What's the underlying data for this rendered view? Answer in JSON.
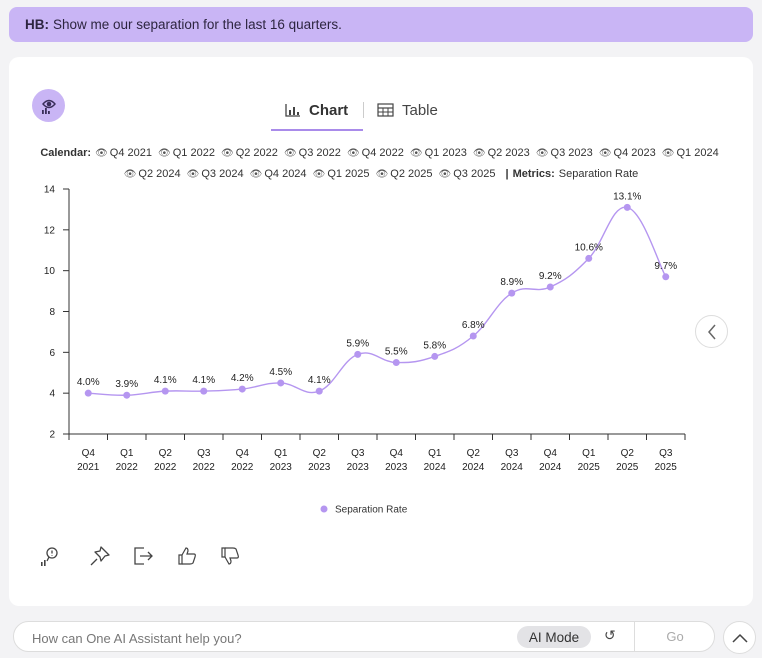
{
  "prompt": {
    "user": "HB:",
    "text": "Show me our separation for the last 16 quarters."
  },
  "tabs": {
    "chart": "Chart",
    "table": "Table"
  },
  "filters": {
    "calendar_label": "Calendar:",
    "quarters": [
      "Q4 2021",
      "Q1 2022",
      "Q2 2022",
      "Q3 2022",
      "Q4 2022",
      "Q1 2023",
      "Q2 2023",
      "Q3 2023",
      "Q4 2023",
      "Q1 2024",
      "Q2 2024",
      "Q3 2024",
      "Q4 2024",
      "Q1 2025",
      "Q2 2025",
      "Q3 2025"
    ],
    "metrics_label": "Metrics:",
    "metric": "Separation Rate"
  },
  "chart_data": {
    "type": "line",
    "categories": [
      [
        "Q4",
        "2021"
      ],
      [
        "Q1",
        "2022"
      ],
      [
        "Q2",
        "2022"
      ],
      [
        "Q3",
        "2022"
      ],
      [
        "Q4",
        "2022"
      ],
      [
        "Q1",
        "2023"
      ],
      [
        "Q2",
        "2023"
      ],
      [
        "Q3",
        "2023"
      ],
      [
        "Q4",
        "2023"
      ],
      [
        "Q1",
        "2024"
      ],
      [
        "Q2",
        "2024"
      ],
      [
        "Q3",
        "2024"
      ],
      [
        "Q4",
        "2024"
      ],
      [
        "Q1",
        "2025"
      ],
      [
        "Q2",
        "2025"
      ],
      [
        "Q3",
        "2025"
      ]
    ],
    "series": [
      {
        "name": "Separation Rate",
        "values": [
          4.0,
          3.9,
          4.1,
          4.1,
          4.2,
          4.5,
          4.1,
          5.9,
          5.5,
          5.8,
          6.8,
          8.9,
          9.2,
          10.6,
          13.1,
          9.7
        ],
        "labels": [
          "4.0%",
          "3.9%",
          "4.1%",
          "4.1%",
          "4.2%",
          "4.5%",
          "4.1%",
          "5.9%",
          "5.5%",
          "5.8%",
          "6.8%",
          "8.9%",
          "9.2%",
          "10.6%",
          "13.1%",
          "9.7%"
        ]
      }
    ],
    "ylim": [
      2,
      14
    ],
    "yticks": [
      2,
      4,
      6,
      8,
      10,
      12,
      14
    ],
    "legend": "bottom-center",
    "grid": false,
    "color": "#b596f0"
  },
  "input": {
    "placeholder": "How can One AI Assistant help you?",
    "ai_mode": "AI Mode",
    "go": "Go"
  }
}
